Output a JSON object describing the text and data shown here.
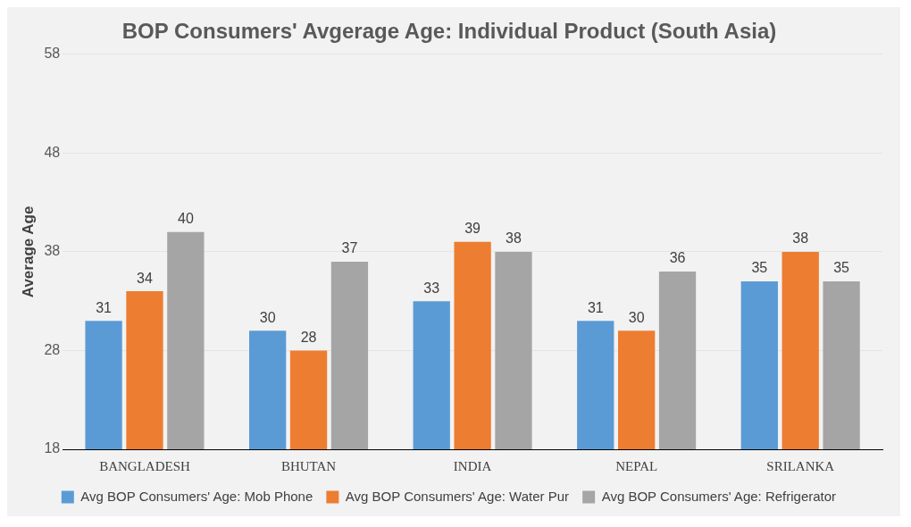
{
  "chart_data": {
    "type": "bar",
    "title": "BOP Consumers' Avgerage Age: Individual Product (South Asia)",
    "ylabel": "Average Age",
    "categories": [
      "BANGLADESH",
      "BHUTAN",
      "INDIA",
      "NEPAL",
      "SRILANKA"
    ],
    "series": [
      {
        "name": "Avg BOP Consumers' Age: Mob Phone",
        "color": "#5b9bd5",
        "values": [
          31,
          30,
          33,
          31,
          35
        ]
      },
      {
        "name": "Avg BOP Consumers' Age: Water Pur",
        "color": "#ed7d31",
        "values": [
          34,
          28,
          39,
          30,
          38
        ]
      },
      {
        "name": "Avg BOP Consumers' Age: Refrigerator",
        "color": "#a5a5a5",
        "values": [
          40,
          37,
          38,
          36,
          35
        ]
      }
    ],
    "ylim": [
      18,
      58
    ],
    "yticks": [
      18,
      28,
      38,
      48,
      58
    ],
    "grid": "y",
    "legend": "bottom",
    "data_labels": true
  }
}
